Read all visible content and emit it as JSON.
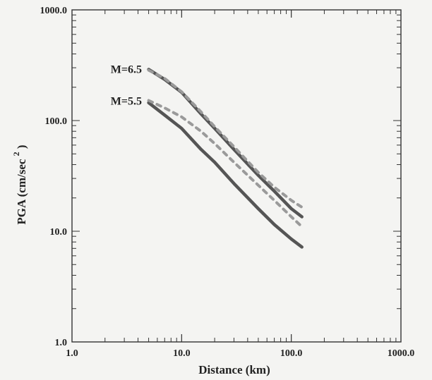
{
  "chart_data": {
    "type": "line",
    "xlabel": "Distance (km)",
    "ylabel": "PGA (cm/sec",
    "ylabel_superscript": "2",
    "ylabel_close": ")",
    "x_scale": "log",
    "y_scale": "log",
    "xlim": [
      1.0,
      1000.0
    ],
    "ylim": [
      1.0,
      1000.0
    ],
    "x_ticks": [
      1.0,
      10.0,
      100.0,
      1000.0
    ],
    "x_tick_labels": [
      "1.0",
      "10.0",
      "100.0",
      "1000.0"
    ],
    "y_ticks": [
      1.0,
      10.0,
      100.0,
      1000.0
    ],
    "y_tick_labels": [
      "1.0",
      "10.0",
      "100.0",
      "1000.0"
    ],
    "grid": false,
    "annotations": [
      {
        "text": "M=6.5",
        "x": 4.6,
        "y": 290
      },
      {
        "text": "M=5.5",
        "x": 4.6,
        "y": 150
      }
    ],
    "series": [
      {
        "style": "solid",
        "x": [
          5,
          7,
          10,
          15,
          20,
          30,
          50,
          70,
          100,
          125
        ],
        "y": [
          290,
          235,
          180,
          115,
          85,
          55,
          32,
          23,
          16,
          13.5
        ]
      },
      {
        "style": "dashed",
        "x": [
          5,
          7,
          10,
          15,
          20,
          30,
          50,
          70,
          100,
          125
        ],
        "y": [
          285,
          240,
          182,
          120,
          88,
          58,
          34,
          25,
          19,
          16.5
        ]
      },
      {
        "style": "solid",
        "x": [
          5,
          7,
          10,
          15,
          20,
          30,
          50,
          70,
          100,
          125
        ],
        "y": [
          145,
          112,
          85,
          55,
          42,
          27,
          16,
          11.5,
          8.5,
          7.2
        ]
      },
      {
        "style": "dashed",
        "x": [
          5,
          7,
          10,
          15,
          20,
          30,
          50,
          70,
          100,
          125
        ],
        "y": [
          152,
          130,
          108,
          80,
          62,
          42,
          26,
          19,
          13.5,
          11
        ]
      }
    ]
  }
}
